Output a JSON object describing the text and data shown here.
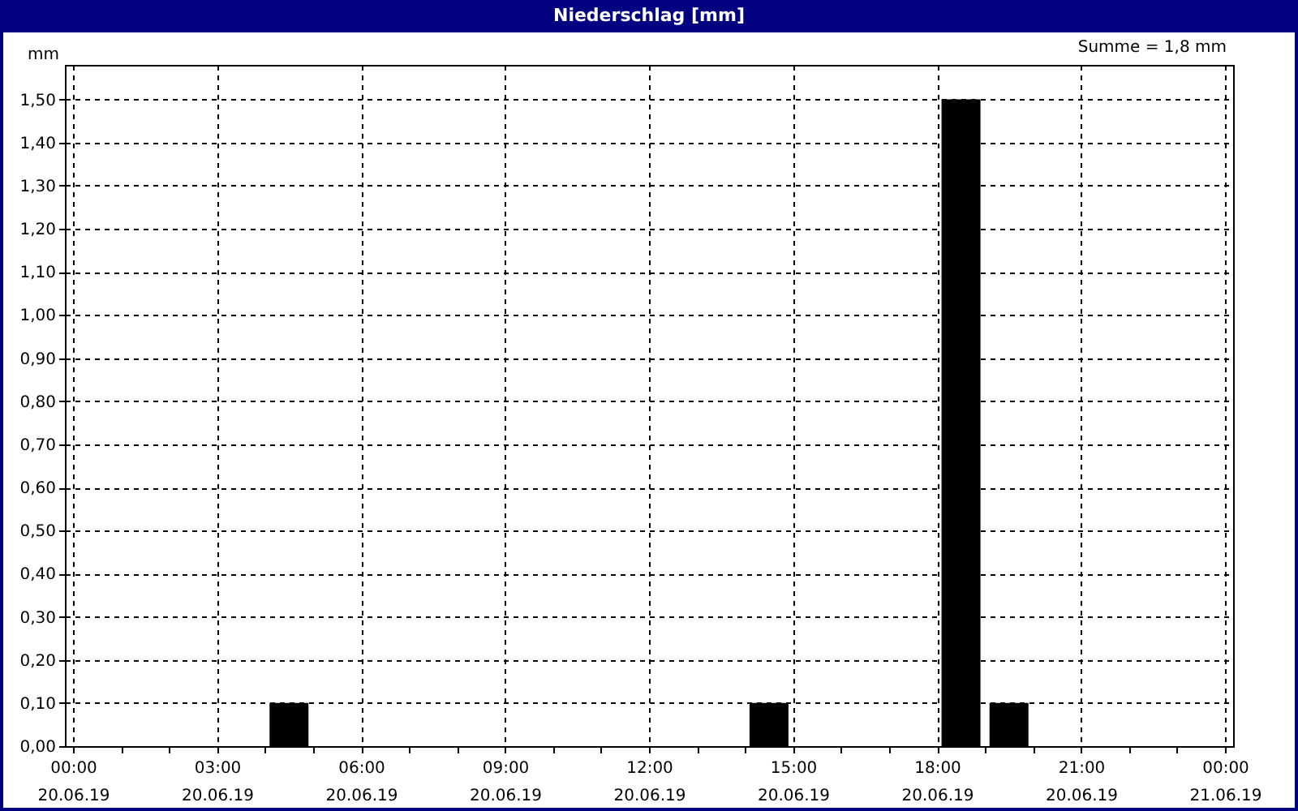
{
  "chart_data": {
    "type": "bar",
    "title": "Niederschlag [mm]",
    "ylabel": "mm",
    "annotations": [
      "Summe = 1,8 mm"
    ],
    "x": [
      "--06-20T04:30",
      "--06-20T14:30",
      "--06-20T18:30",
      "--06-20T19:30"
    ],
    "values": [
      0.1,
      0.1,
      1.5,
      0.1
    ],
    "color": "#000000",
    "xlim": [
      "--06-20T00:00",
      "--06-21T00:00"
    ],
    "xticks": [
      {
        "value": "--06-20T00:00",
        "label": "00:00 20.06.19"
      },
      {
        "value": "--06-20T01:00",
        "label": null
      },
      {
        "value": "--06-20T02:00",
        "label": null
      },
      {
        "value": "--06-20T03:00",
        "label": "03:00 20.06.19"
      },
      {
        "value": "--06-20T04:00",
        "label": null
      },
      {
        "value": "--06-20T05:00",
        "label": null
      },
      {
        "value": "--06-20T06:00",
        "label": "06:00 20.06.19"
      },
      {
        "value": "--06-20T07:00",
        "label": null
      },
      {
        "value": "--06-20T08:00",
        "label": null
      },
      {
        "value": "--06-20T09:00",
        "label": "09:00 20.06.19"
      },
      {
        "value": "--06-20T10:00",
        "label": null
      },
      {
        "value": "--06-20T11:00",
        "label": null
      },
      {
        "value": "--06-20T12:00",
        "label": "12:00 20.06.19"
      },
      {
        "value": "--06-20T13:00",
        "label": null
      },
      {
        "value": "--06-20T14:00",
        "label": null
      },
      {
        "value": "--06-20T15:00",
        "label": "15:00 20.06.19"
      },
      {
        "value": "--06-20T16:00",
        "label": null
      },
      {
        "value": "--06-20T17:00",
        "label": null
      },
      {
        "value": "--06-20T18:00",
        "label": "18:00 20.06.19"
      },
      {
        "value": "--06-20T19:00",
        "label": null
      },
      {
        "value": "--06-20T20:00",
        "label": null
      },
      {
        "value": "--06-20T21:00",
        "label": "21:00 20.06.19"
      },
      {
        "value": "--06-20T22:00",
        "label": null
      },
      {
        "value": "--06-20T23:00",
        "label": null
      },
      {
        "value": "--06-21T00:00",
        "label": "00:00 21.06.19"
      }
    ],
    "ylim": [
      0,
      1.58
    ],
    "yticks": [
      {
        "value": 0,
        "label": "0,00"
      },
      {
        "value": 0.1,
        "label": "0,10"
      },
      {
        "value": 0.2,
        "label": "0,20"
      },
      {
        "value": 0.3,
        "label": "0,30"
      },
      {
        "value": 0.4,
        "label": "0,40"
      },
      {
        "value": 0.5,
        "label": "0,50"
      },
      {
        "value": 0.6,
        "label": "0,60"
      },
      {
        "value": 0.7,
        "label": "0,70"
      },
      {
        "value": 0.8,
        "label": "0,80"
      },
      {
        "value": 0.9,
        "label": "0,90"
      },
      {
        "value": 1.0,
        "label": "1,00"
      },
      {
        "value": 1.1,
        "label": "1,10"
      },
      {
        "value": 1.2,
        "label": "1,20"
      },
      {
        "value": 1.3,
        "label": "1,30"
      },
      {
        "value": 1.4,
        "label": "1,40"
      },
      {
        "value": 1.5,
        "label": "1,50"
      }
    ],
    "grid": true
  }
}
